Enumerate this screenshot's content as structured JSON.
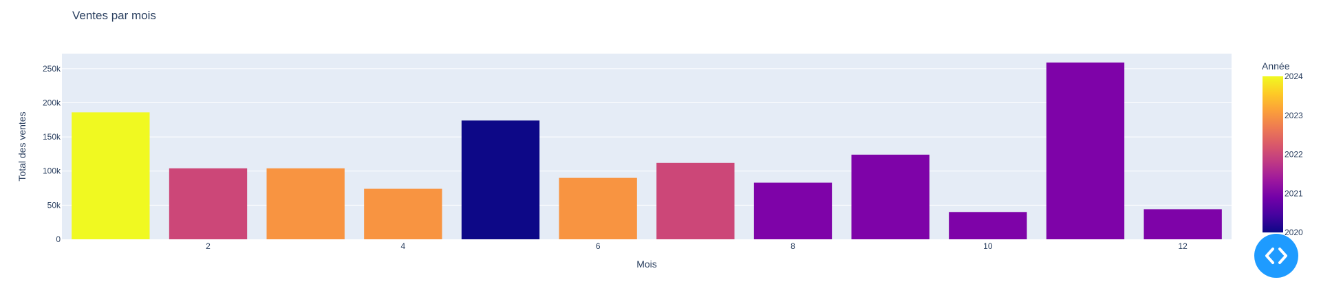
{
  "chart_data": {
    "type": "bar",
    "title": "Ventes par mois",
    "xlabel": "Mois",
    "ylabel": "Total des ventes",
    "x": [
      1,
      2,
      3,
      4,
      5,
      6,
      7,
      8,
      9,
      10,
      11,
      12
    ],
    "values": [
      186000,
      104000,
      104000,
      74000,
      174000,
      90000,
      112000,
      83000,
      124000,
      40000,
      259000,
      44000
    ],
    "year": [
      2024,
      2022,
      2023,
      2023,
      2020,
      2023,
      2022,
      2021,
      2021,
      2021,
      2021,
      2021
    ],
    "bar_colors": [
      "#f0f921",
      "#cc4778",
      "#f89441",
      "#f89441",
      "#0d0887",
      "#f89441",
      "#cc4778",
      "#7e03a8",
      "#7e03a8",
      "#7e03a8",
      "#7e03a8",
      "#7e03a8"
    ],
    "x_ticks": [
      2,
      4,
      6,
      8,
      10,
      12
    ],
    "y_ticks": [
      0,
      50000,
      100000,
      150000,
      200000,
      250000
    ],
    "y_tick_labels": [
      "0",
      "50k",
      "100k",
      "150k",
      "200k",
      "250k"
    ],
    "ylim": [
      0,
      272000
    ],
    "xlim": [
      0.5,
      12.5
    ],
    "grid": true,
    "colorbar": {
      "title": "Année",
      "ticks": [
        "2020",
        "2021",
        "2022",
        "2023",
        "2024"
      ],
      "colors": [
        "#0d0887",
        "#7e03a8",
        "#cc4778",
        "#f89441",
        "#f0f921"
      ]
    }
  },
  "fab": {
    "icon": "code-icon"
  },
  "colors": {
    "plot_bg": "#e5ecf6",
    "grid": "#ffffff",
    "text": "#2a3f5f",
    "fab": "#1e9bff"
  }
}
